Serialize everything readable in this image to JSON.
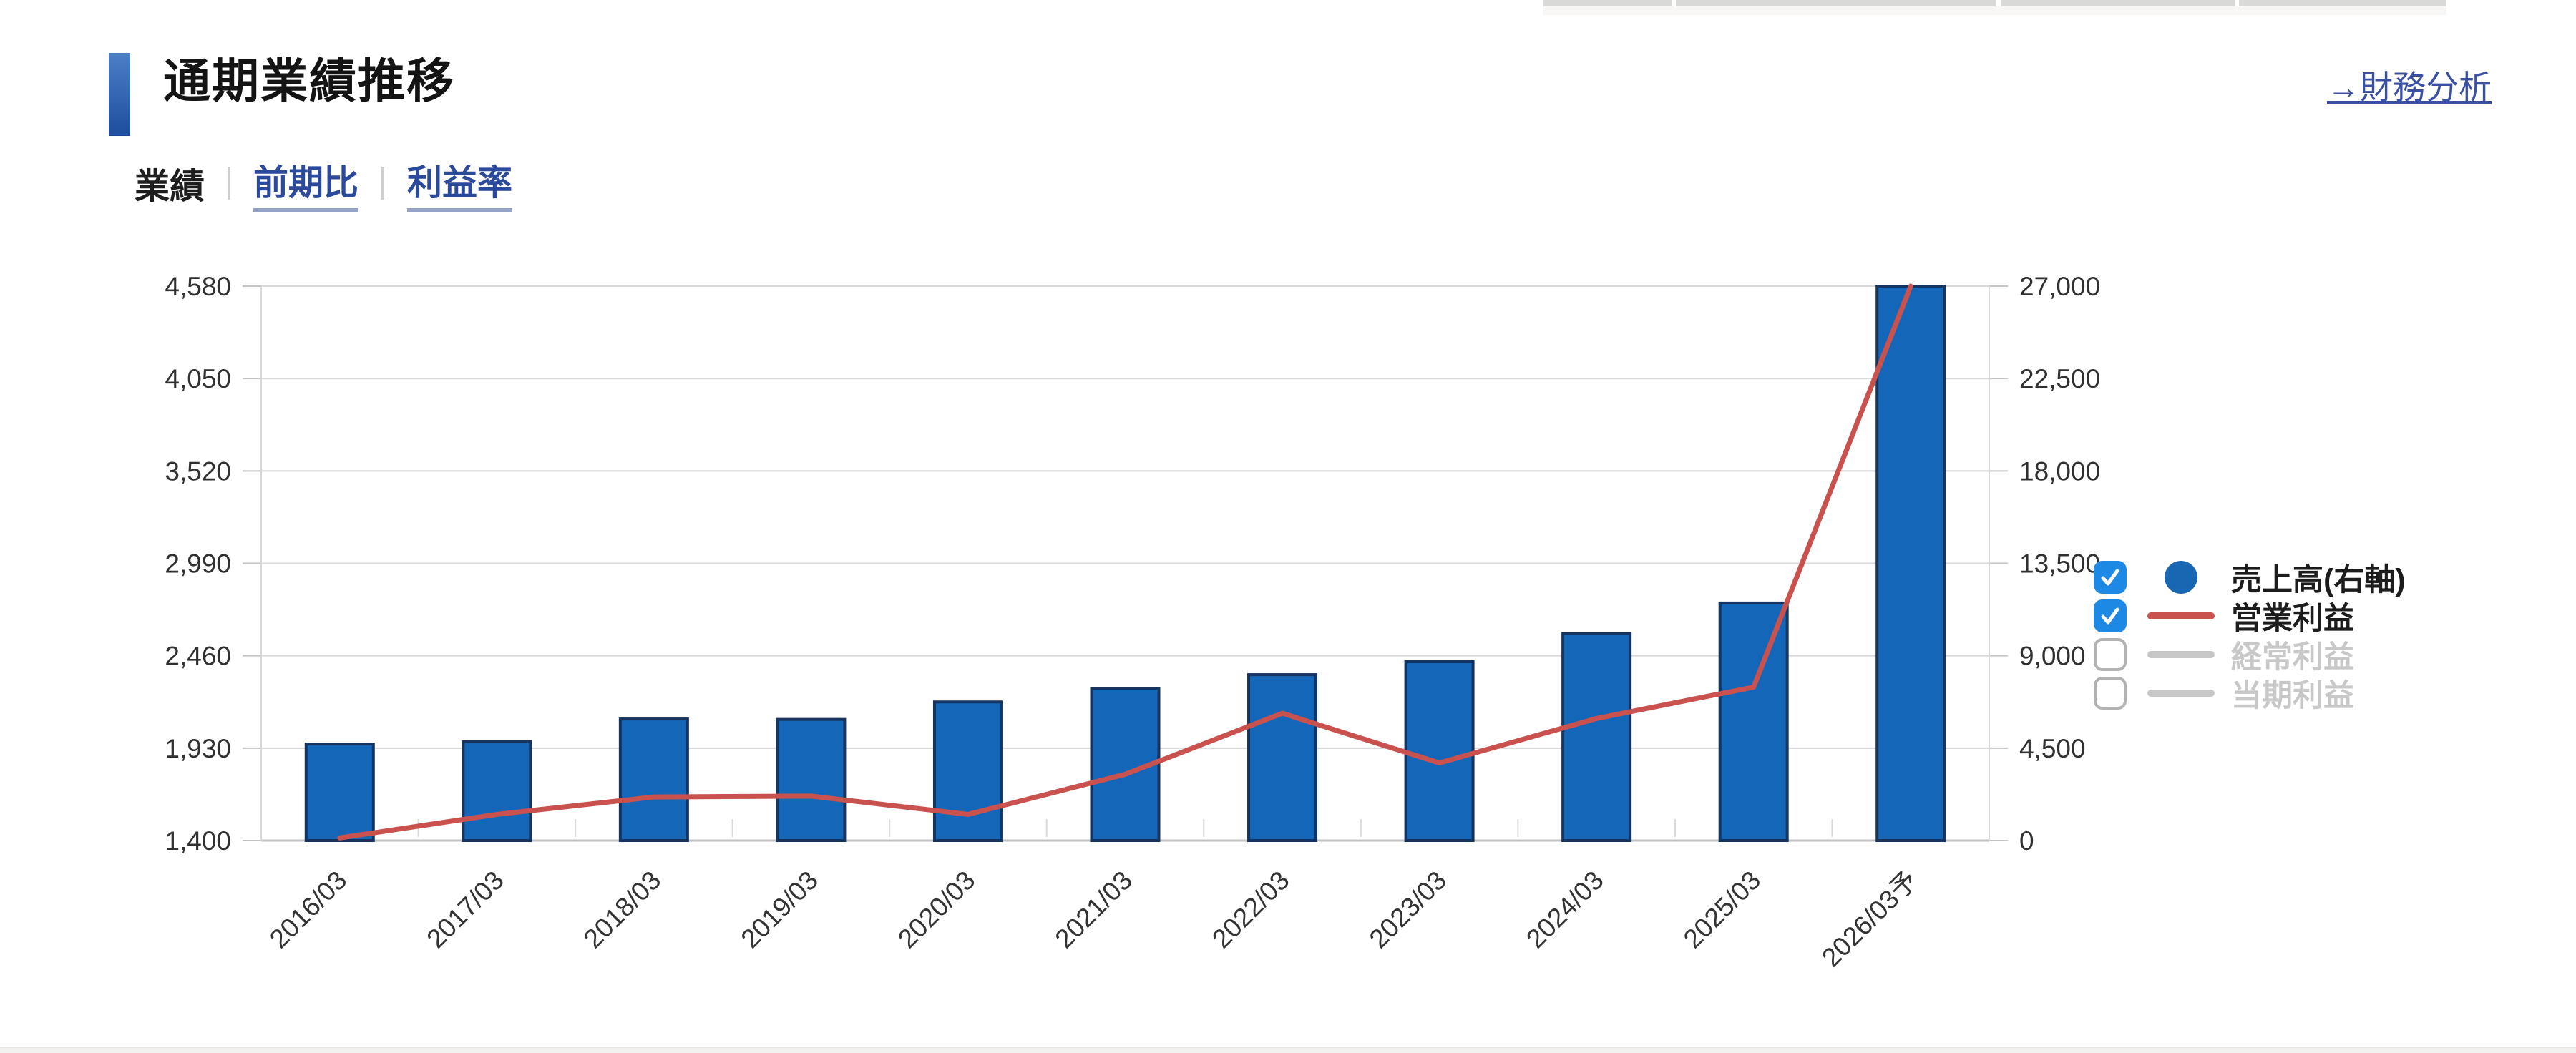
{
  "page": {
    "title": "通期業績推移",
    "link": "→財務分析"
  },
  "tabs": [
    {
      "label": "業績",
      "active": true
    },
    {
      "label": "前期比",
      "active": false
    },
    {
      "label": "利益率",
      "active": false
    }
  ],
  "colors": {
    "bar_fill": "#1467b8",
    "bar_border": "#15345f",
    "line_red": "#c9524e",
    "checkbox_blue": "#1e88e5",
    "inactive_gray": "#c8c8c8",
    "link_blue": "#3c50a3",
    "title_marker_blue": "#2a5cab"
  },
  "legend": {
    "items": [
      {
        "label": "売上高(右軸)",
        "checked": true,
        "marker": "circle",
        "color": "#1966b3"
      },
      {
        "label": "営業利益",
        "checked": true,
        "marker": "line",
        "color": "#c9524e"
      },
      {
        "label": "経常利益",
        "checked": false,
        "marker": "line",
        "color": "#c8c8c8"
      },
      {
        "label": "当期利益",
        "checked": false,
        "marker": "line",
        "color": "#c8c8c8"
      }
    ]
  },
  "chart_data": {
    "type": "bar",
    "categories": [
      "2016/03",
      "2017/03",
      "2018/03",
      "2019/03",
      "2020/03",
      "2021/03",
      "2022/03",
      "2023/03",
      "2024/03",
      "2025/03",
      "2026/03予"
    ],
    "series": [
      {
        "name": "売上高(右軸)",
        "type": "bar",
        "axis": "right",
        "color": "#1467b8",
        "border_color": "#15345f",
        "values": [
          4700,
          4810,
          5920,
          5900,
          6750,
          7420,
          8080,
          8710,
          10070,
          11570,
          27000
        ]
      },
      {
        "name": "営業利益",
        "type": "line",
        "axis": "left",
        "color": "#c9524e",
        "values": [
          1415,
          1550,
          1650,
          1655,
          1550,
          1780,
          2130,
          1845,
          2100,
          2280,
          4580
        ]
      },
      {
        "name": "経常利益",
        "type": "line",
        "axis": "left",
        "color": "#c8c8c8",
        "visible": false,
        "values": null
      },
      {
        "name": "当期利益",
        "type": "line",
        "axis": "left",
        "color": "#c8c8c8",
        "visible": false,
        "values": null
      }
    ],
    "left_axis": {
      "min": 1400,
      "max": 4580,
      "tick_labels": [
        "4,580",
        "4,050",
        "3,520",
        "2,990",
        "2,460",
        "1,930",
        "1,400"
      ]
    },
    "right_axis": {
      "min": 0,
      "max": 27000,
      "tick_labels": [
        "27,000",
        "22,500",
        "18,000",
        "13,500",
        "9,000",
        "4,500",
        "0"
      ]
    },
    "grid": true,
    "legend_position": "right",
    "title": "通期業績推移"
  }
}
